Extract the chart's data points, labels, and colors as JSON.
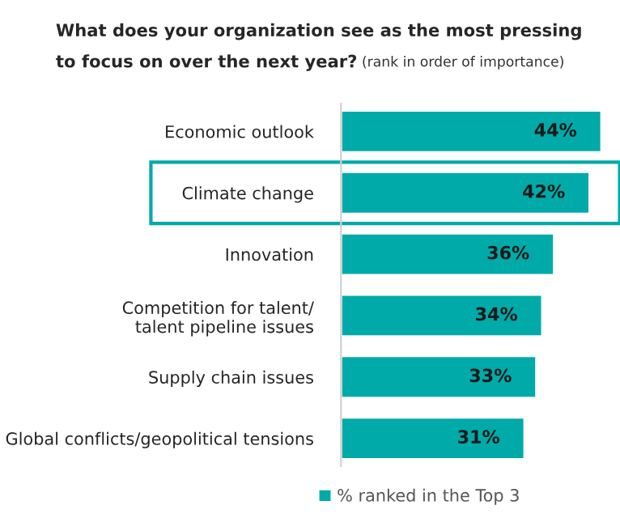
{
  "chart_data": {
    "type": "bar",
    "orientation": "horizontal",
    "title": "What does your organization see as the most pressing\nto focus on over the next year?",
    "subtitle": "(rank in order of importance)",
    "categories": [
      "Economic outlook",
      "Climate change",
      "Innovation",
      "Competition for talent/\ntalent pipeline issues",
      "Supply chain issues",
      "Global conflicts/geopolitical tensions"
    ],
    "series": [
      {
        "name": "% ranked in the Top 3",
        "color": "#00aaa8",
        "values": [
          44,
          42,
          36,
          34,
          33,
          31
        ],
        "value_labels": [
          "44%",
          "42%",
          "36%",
          "34%",
          "33%",
          "31%"
        ]
      }
    ],
    "legend": "bottom",
    "grid": false
  }
}
